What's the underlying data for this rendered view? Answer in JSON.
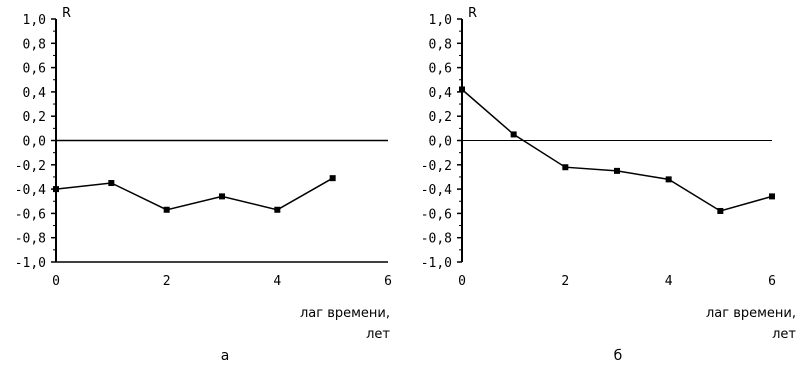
{
  "chart_data": [
    {
      "type": "line",
      "panel_label": "а",
      "ylabel": "R",
      "xlabel_line1": "лаг времени,",
      "xlabel_line2": "лет",
      "ylim": [
        -1.0,
        1.0
      ],
      "xlim": [
        0,
        6
      ],
      "y_ticks": [
        "1,0",
        "0,8",
        "0,6",
        "0,4",
        "0,2",
        "0,0",
        "-0,2",
        "-0,4",
        "-0,6",
        "-0,8",
        "-1,0"
      ],
      "x_ticks": [
        "0",
        "2",
        "4",
        "6"
      ],
      "zero_line": true,
      "grid": false,
      "series": [
        {
          "x": [
            0,
            1,
            2,
            3,
            4,
            5
          ],
          "values": [
            -0.4,
            -0.35,
            -0.57,
            -0.46,
            -0.57,
            -0.31
          ]
        }
      ]
    },
    {
      "type": "line",
      "panel_label": "б",
      "ylabel": "R",
      "xlabel_line1": "лаг времени,",
      "xlabel_line2": "лет",
      "ylim": [
        -1.0,
        1.0
      ],
      "xlim": [
        0,
        6
      ],
      "y_ticks": [
        "1,0",
        "0,8",
        "0,6",
        "0,4",
        "0,2",
        "0,0",
        "-0,2",
        "-0,4",
        "-0,6",
        "-0,8",
        "-1,0"
      ],
      "x_ticks": [
        "0",
        "2",
        "4",
        "6"
      ],
      "zero_line": true,
      "grid": false,
      "series": [
        {
          "x": [
            0,
            1,
            2,
            3,
            4,
            5,
            6
          ],
          "values": [
            0.42,
            0.05,
            -0.22,
            -0.25,
            -0.32,
            -0.58,
            -0.46
          ]
        }
      ]
    }
  ]
}
